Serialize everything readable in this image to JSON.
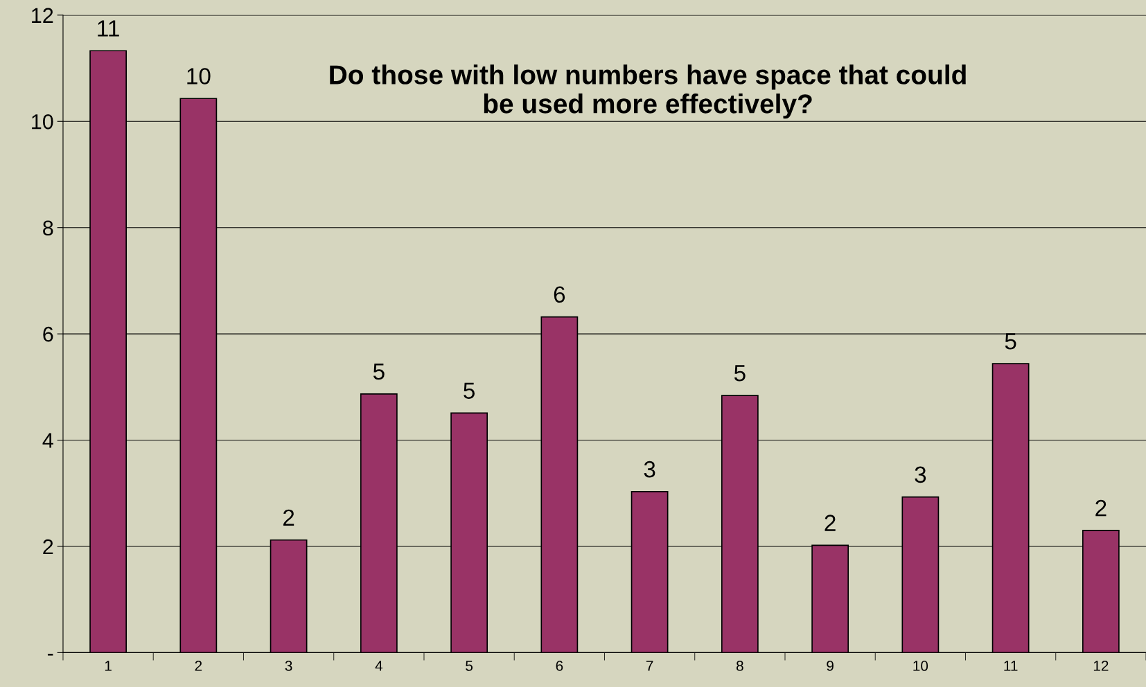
{
  "chart_data": {
    "type": "bar",
    "title": "Do those with low numbers have space that could be used more effectively?",
    "categories": [
      "1",
      "2",
      "3",
      "4",
      "5",
      "6",
      "7",
      "8",
      "9",
      "10",
      "11",
      "12"
    ],
    "values": [
      11.33,
      10.43,
      2.12,
      4.87,
      4.51,
      6.32,
      3.03,
      4.84,
      2.02,
      2.93,
      5.44,
      2.3
    ],
    "value_labels": [
      "11",
      "10",
      "2",
      "5",
      "5",
      "6",
      "3",
      "5",
      "2",
      "3",
      "5",
      "2"
    ],
    "color": "#993366",
    "ylim": [
      0,
      12
    ],
    "yticks": [
      {
        "value": 0,
        "label": "-"
      },
      2,
      4,
      6,
      8,
      10,
      12
    ],
    "grid": "y"
  }
}
